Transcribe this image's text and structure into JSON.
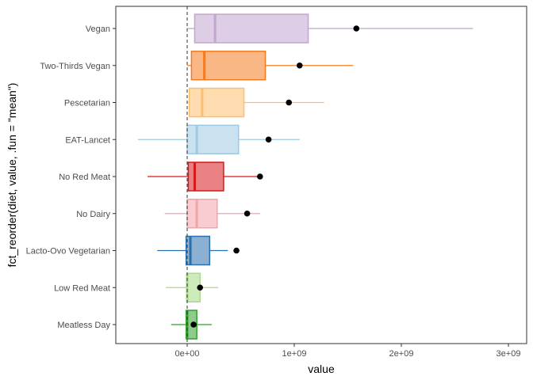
{
  "chart_data": {
    "type": "boxplot",
    "xlabel": "value",
    "ylabel": "fct_reorder(diet, value, .fun = \"mean\")",
    "xlim": [
      -660000000,
      3100000000
    ],
    "xticks": [
      {
        "value": 0,
        "label": "0e+00"
      },
      {
        "value": 1000000000,
        "label": "1e+09"
      },
      {
        "value": 2000000000,
        "label": "2e+09"
      },
      {
        "value": 3000000000,
        "label": "3e+09"
      }
    ],
    "reference_line": {
      "x": 0,
      "style": "dashed"
    },
    "grid": false,
    "legend": "none",
    "categories": [
      "Vegan",
      "Two-Thirds Vegan",
      "Pescetarian",
      "EAT-Lancet",
      "No Red Meat",
      "No Dairy",
      "Lacto-Ovo Vegetarian",
      "Low Red Meat",
      "Meatless Day"
    ],
    "series": [
      {
        "category": "Vegan",
        "color": "#c2a5cf",
        "whisker_low": 0,
        "q1": 70000000,
        "median": 260000000,
        "q3": 1130000000,
        "whisker_high": 2670000000,
        "mean": 1580000000
      },
      {
        "category": "Two-Thirds Vegan",
        "color": "#f47b20",
        "whisker_low": 0,
        "q1": 40000000,
        "median": 160000000,
        "q3": 730000000,
        "whisker_high": 1550000000,
        "mean": 1050000000
      },
      {
        "category": "Pescetarian",
        "color": "#fdbf6f",
        "whisker_low": 0,
        "q1": 20000000,
        "median": 140000000,
        "q3": 530000000,
        "whisker_high": 1280000000,
        "mean": 950000000
      },
      {
        "category": "EAT-Lancet",
        "color": "#9ecae1",
        "whisker_low": -460000000,
        "q1": 0,
        "median": 90000000,
        "q3": 480000000,
        "whisker_high": 1050000000,
        "mean": 760000000
      },
      {
        "category": "No Red Meat",
        "color": "#d7191c",
        "whisker_low": -370000000,
        "q1": 10000000,
        "median": 70000000,
        "q3": 340000000,
        "whisker_high": 680000000,
        "mean": 680000000
      },
      {
        "category": "No Dairy",
        "color": "#f4a3a8",
        "whisker_low": -210000000,
        "q1": 0,
        "median": 90000000,
        "q3": 280000000,
        "whisker_high": 680000000,
        "mean": 560000000
      },
      {
        "category": "Lacto-Ovo Vegetarian",
        "color": "#2c6fad",
        "whisker_low": -280000000,
        "q1": -10000000,
        "median": 30000000,
        "q3": 210000000,
        "whisker_high": 380000000,
        "mean": 460000000
      },
      {
        "category": "Low Red Meat",
        "color": "#a6dc84",
        "whisker_low": -200000000,
        "q1": 0,
        "median": 0,
        "q3": 120000000,
        "whisker_high": 290000000,
        "mean": 120000000
      },
      {
        "category": "Meatless Day",
        "color": "#33a02c",
        "whisker_low": -150000000,
        "q1": -10000000,
        "median": 0,
        "q3": 90000000,
        "whisker_high": 230000000,
        "mean": 60000000
      }
    ]
  }
}
